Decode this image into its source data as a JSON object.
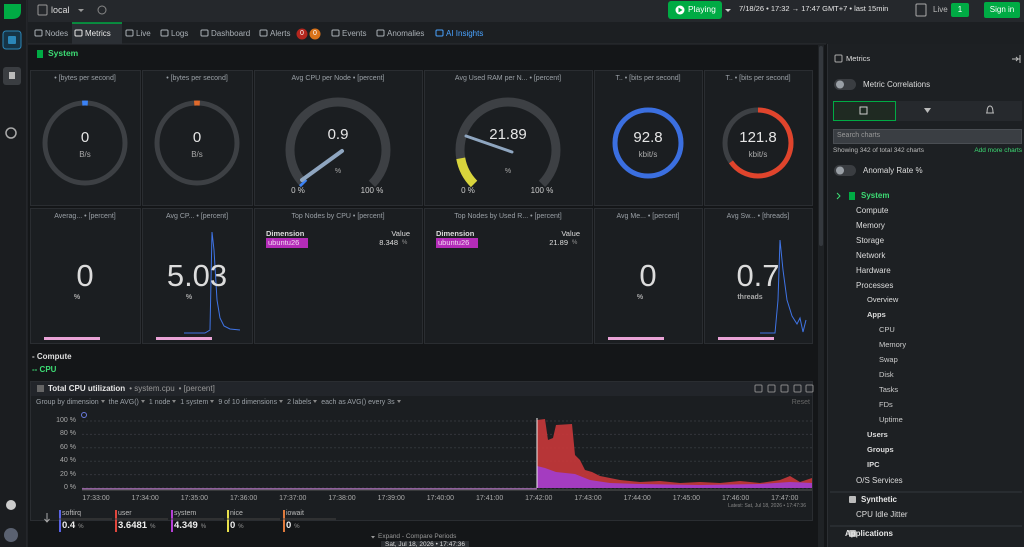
{
  "top_bar": {
    "space": "local",
    "status": "Playing",
    "time_range": "7/18/26 • 17:32 → 17:47 GMT+7 • last 15min",
    "live": "Live",
    "live_count": "1",
    "sign_in": "Sign in"
  },
  "tabs": [
    {
      "label": "Nodes"
    },
    {
      "label": "Metrics",
      "active": true
    },
    {
      "label": "Live"
    },
    {
      "label": "Logs"
    },
    {
      "label": "Dashboard"
    },
    {
      "label": "Alerts",
      "badges": [
        "0",
        "0"
      ]
    },
    {
      "label": "Events"
    },
    {
      "label": "Anomalies"
    },
    {
      "label": "AI Insights"
    }
  ],
  "section": "System",
  "gauges": [
    {
      "title": "• [bytes per second]",
      "value": "0",
      "unit": "B/s"
    },
    {
      "title": "• [bytes per second]",
      "value": "0",
      "unit": "B/s"
    },
    {
      "title": "Avg CPU per Node • [percent]",
      "value": "0.9",
      "unit": "%",
      "min": "0 %",
      "max": "100 %"
    },
    {
      "title": "Avg Used RAM per N... • [percent]",
      "value": "21.89",
      "unit": "%",
      "min": "0 %",
      "max": "100 %"
    },
    {
      "title": "T.. • [bits per second]",
      "value": "92.8",
      "unit": "kbit/s"
    },
    {
      "title": "T.. • [bits per second]",
      "value": "121.8",
      "unit": "kbit/s"
    }
  ],
  "cards": [
    {
      "title": "Averag... • [percent]",
      "value": "0",
      "unit": "%"
    },
    {
      "title": "Avg CP... • [percent]",
      "value": "5.03",
      "unit": "%"
    },
    {
      "title": "Top Nodes by CPU • [percent]",
      "columns": [
        "Dimension",
        "Value"
      ],
      "rows": [
        {
          "name": "ubuntu26",
          "value": "8.348",
          "unit": "%"
        }
      ]
    },
    {
      "title": "Top Nodes by Used R... • [percent]",
      "columns": [
        "Dimension",
        "Value"
      ],
      "rows": [
        {
          "name": "ubuntu26",
          "value": "21.89",
          "unit": "%"
        }
      ]
    },
    {
      "title": "Avg Me... • [percent]",
      "value": "0",
      "unit": "%"
    },
    {
      "title": "Avg Sw... • [threads]",
      "value": "0.7",
      "unit": "threads"
    }
  ],
  "subsections": [
    "- Compute",
    "-- CPU"
  ],
  "chart": {
    "title": "Total CPU utilization",
    "context": "• system.cpu",
    "units": "• [percent]",
    "toolbar": [
      "Group by dimension",
      "the AVG()",
      "1 node",
      "1 system",
      "9 of 10 dimensions",
      "2 labels",
      "each as AVG() every 3s"
    ],
    "reset": "Reset",
    "yticks": [
      "100 %",
      "80 %",
      "60 %",
      "40 %",
      "20 %",
      "0 %"
    ],
    "xticks": [
      "17:33:00",
      "17:34:00",
      "17:35:00",
      "17:36:00",
      "17:37:00",
      "17:38:00",
      "17:39:00",
      "17:40:00",
      "17:41:00",
      "17:42:00",
      "17:43:00",
      "17:44:00",
      "17:45:00",
      "17:46:00",
      "17:47:00"
    ],
    "latest": "Latest: Sat, Jul 18, 2026 • 17:47:36",
    "legend": [
      {
        "name": "softirq",
        "value": "0.4",
        "unit": "%",
        "color": "#5a63e6"
      },
      {
        "name": "user",
        "value": "3.6481",
        "unit": "%",
        "color": "#e0463c"
      },
      {
        "name": "system",
        "value": "4.349",
        "unit": "%",
        "color": "#b640d6"
      },
      {
        "name": "nice",
        "value": "0",
        "unit": "%",
        "color": "#e8e04c"
      },
      {
        "name": "iowait",
        "value": "0",
        "unit": "%",
        "color": "#e07a3c"
      }
    ],
    "expand": "Expand - Compare Periods",
    "timestamp": "Sat, Jul 18, 2026 • 17:47:36"
  },
  "side_panel": {
    "title": "Metrics",
    "metric_correlations": "Metric Correlations",
    "search_placeholder": "Search charts",
    "showing": "Showing 342 of total 342 charts",
    "add_more": "Add more charts",
    "anomaly_rate": "Anomaly Rate %",
    "tree": [
      {
        "label": "System",
        "children": [
          {
            "label": "Compute"
          },
          {
            "label": "Memory"
          },
          {
            "label": "Storage"
          },
          {
            "label": "Network"
          },
          {
            "label": "Hardware"
          },
          {
            "label": "Processes",
            "children": [
              {
                "label": "Overview"
              },
              {
                "label": "Apps",
                "children": [
                  {
                    "label": "CPU"
                  },
                  {
                    "label": "Memory"
                  },
                  {
                    "label": "Swap"
                  },
                  {
                    "label": "Disk"
                  },
                  {
                    "label": "Tasks"
                  },
                  {
                    "label": "FDs"
                  },
                  {
                    "label": "Uptime"
                  }
                ]
              },
              {
                "label": "Users"
              },
              {
                "label": "Groups"
              },
              {
                "label": "IPC"
              }
            ]
          },
          {
            "label": "O/S Services"
          }
        ]
      },
      {
        "label": "Synthetic",
        "children": [
          {
            "label": "CPU Idle Jitter"
          }
        ]
      },
      {
        "label": "Applications"
      }
    ]
  }
}
